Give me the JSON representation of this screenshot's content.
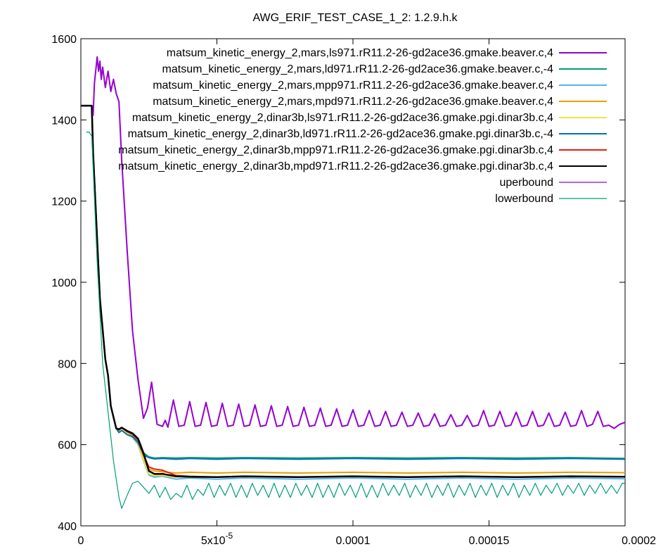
{
  "chart_data": {
    "type": "line",
    "title": "AWG_ERIF_TEST_CASE_1_2: 1.2.9.h.k",
    "xlabel": "",
    "ylabel": "",
    "xlim": [
      0,
      0.0002
    ],
    "ylim": [
      400,
      1600
    ],
    "x_ticks": [
      {
        "value": 0,
        "label": "0"
      },
      {
        "value": 5e-05,
        "label": "5x10",
        "sup": "-5"
      },
      {
        "value": 0.0001,
        "label": "0.0001"
      },
      {
        "value": 0.00015,
        "label": "0.00015"
      },
      {
        "value": 0.0002,
        "label": "0.0002"
      }
    ],
    "y_ticks": [
      {
        "value": 400,
        "label": "400"
      },
      {
        "value": 600,
        "label": "600"
      },
      {
        "value": 800,
        "label": "800"
      },
      {
        "value": 1000,
        "label": "1000"
      },
      {
        "value": 1200,
        "label": "1200"
      },
      {
        "value": 1400,
        "label": "1400"
      },
      {
        "value": 1600,
        "label": "1600"
      }
    ],
    "legend_position": "top-right",
    "series": [
      {
        "name": "matsum_kinetic_energy_2,mars,ls971.rR11.2-26-gd2ace36.gmake.beaver.c,4",
        "color": "#9400d3",
        "width": 2,
        "x": [
          4.5e-06,
          5e-06,
          6e-06,
          6.5e-06,
          7e-06,
          7.5e-06,
          8e-06,
          9e-06,
          1e-05,
          1.1e-05,
          1.2e-05,
          1.3e-05,
          1.4e-05,
          1.5e-05,
          1.7e-05,
          1.9e-05,
          2.1e-05,
          2.3e-05,
          2.45e-05,
          2.6e-05,
          2.8e-05,
          3e-05,
          3.1e-05,
          3.2e-05,
          3.4e-05,
          3.6e-05,
          3.8e-05,
          4e-05,
          4.2e-05,
          4.4e-05,
          4.6e-05,
          4.8e-05,
          5e-05,
          5.2e-05,
          5.4e-05,
          5.6e-05,
          5.8e-05,
          6e-05,
          6.2e-05,
          6.4e-05,
          6.6e-05,
          6.8e-05,
          7e-05,
          7.2e-05,
          7.4e-05,
          7.6e-05,
          7.8e-05,
          8e-05,
          8.2e-05,
          8.4e-05,
          8.6e-05,
          8.8e-05,
          9e-05,
          9.2e-05,
          9.4e-05,
          9.6e-05,
          9.8e-05,
          0.0001,
          0.000102,
          0.000104,
          0.000106,
          0.000108,
          0.00011,
          0.000112,
          0.000114,
          0.000116,
          0.000118,
          0.00012,
          0.000122,
          0.000124,
          0.000126,
          0.000128,
          0.00013,
          0.000132,
          0.000134,
          0.000136,
          0.000138,
          0.00014,
          0.000142,
          0.000144,
          0.000146,
          0.000148,
          0.00015,
          0.000152,
          0.000154,
          0.000156,
          0.000158,
          0.00016,
          0.000162,
          0.000164,
          0.000166,
          0.000168,
          0.00017,
          0.000172,
          0.000174,
          0.000176,
          0.000178,
          0.00018,
          0.000182,
          0.000184,
          0.000186,
          0.000188,
          0.00019,
          0.000192,
          0.000194,
          0.000196,
          0.000198,
          0.0002
        ],
        "y": [
          1410,
          1490,
          1555,
          1520,
          1545,
          1500,
          1530,
          1480,
          1520,
          1470,
          1500,
          1465,
          1445,
          1300,
          1080,
          880,
          760,
          665,
          690,
          754,
          650,
          645,
          660,
          643,
          710,
          645,
          648,
          706,
          645,
          648,
          704,
          645,
          648,
          702,
          645,
          648,
          700,
          645,
          648,
          698,
          645,
          648,
          696,
          645,
          648,
          694,
          645,
          648,
          692,
          645,
          648,
          690,
          645,
          648,
          688,
          645,
          648,
          686,
          645,
          648,
          684,
          645,
          648,
          682,
          645,
          648,
          680,
          645,
          648,
          678,
          645,
          648,
          676,
          645,
          648,
          674,
          645,
          648,
          672,
          645,
          648,
          684,
          645,
          648,
          682,
          645,
          648,
          680,
          645,
          648,
          682,
          645,
          648,
          678,
          645,
          648,
          680,
          645,
          648,
          684,
          645,
          650,
          682,
          645,
          648,
          640,
          650,
          655
        ]
      },
      {
        "name": "matsum_kinetic_energy_2,mars,ld971.rR11.2-26-gd2ace36.gmake.beaver.c,-4",
        "color": "#009e73",
        "width": 2,
        "x": [
          0,
          3e-06,
          4e-06,
          4.5e-06,
          7e-06,
          9e-06,
          1e-05,
          1.1e-05,
          1.3e-05,
          1.4e-05,
          1.5e-05,
          1.7e-05,
          1.9e-05,
          2.1e-05,
          2.3e-05,
          2.5e-05,
          2.7e-05,
          3e-05,
          3.5e-05,
          4e-05,
          5e-05,
          6e-05,
          8e-05,
          0.0001,
          0.00012,
          0.00014,
          0.00016,
          0.00018,
          0.0002
        ],
        "y": [
          1435,
          1435,
          1435,
          1320,
          960,
          810,
          770,
          695,
          640,
          635,
          640,
          630,
          625,
          610,
          580,
          570,
          567,
          568,
          567,
          568,
          567,
          568,
          567,
          568,
          567,
          568,
          567,
          568,
          566
        ]
      },
      {
        "name": "matsum_kinetic_energy_2,mars,mpp971.rR11.2-26-gd2ace36.gmake.beaver.c,4",
        "color": "#56b4e9",
        "width": 2,
        "x": [
          0,
          3e-06,
          4e-06,
          4.5e-06,
          7e-06,
          9e-06,
          1e-05,
          1.1e-05,
          1.3e-05,
          1.4e-05,
          1.5e-05,
          1.7e-05,
          1.9e-05,
          2.1e-05,
          2.3e-05,
          2.5e-05,
          2.7e-05,
          3e-05,
          3.5e-05,
          4e-05,
          5e-05,
          6e-05,
          8e-05,
          0.0001,
          0.00012,
          0.00014,
          0.00016,
          0.00018,
          0.0002
        ],
        "y": [
          1435,
          1435,
          1435,
          1320,
          960,
          810,
          770,
          695,
          640,
          632,
          635,
          625,
          618,
          600,
          560,
          525,
          520,
          522,
          515,
          518,
          515,
          518,
          515,
          518,
          515,
          518,
          515,
          518,
          516
        ]
      },
      {
        "name": "matsum_kinetic_energy_2,mars,mpd971.rR11.2-26-gd2ace36.gmake.beaver.c,4",
        "color": "#e69f00",
        "width": 2,
        "x": [
          0,
          3e-06,
          4e-06,
          4.5e-06,
          7e-06,
          9e-06,
          1e-05,
          1.1e-05,
          1.3e-05,
          1.4e-05,
          1.5e-05,
          1.7e-05,
          1.9e-05,
          2.1e-05,
          2.3e-05,
          2.5e-05,
          2.7e-05,
          3e-05,
          3.5e-05,
          4e-05,
          5e-05,
          6e-05,
          8e-05,
          0.0001,
          0.00012,
          0.00014,
          0.00016,
          0.00018,
          0.0002
        ],
        "y": [
          1435,
          1435,
          1435,
          1320,
          960,
          810,
          770,
          695,
          640,
          635,
          640,
          630,
          622,
          605,
          565,
          540,
          535,
          533,
          530,
          532,
          530,
          532,
          530,
          532,
          530,
          532,
          530,
          532,
          531
        ]
      },
      {
        "name": "matsum_kinetic_energy_2,dinar3b,ls971.rR11.2-26-gd2ace36.gmake.pgi.dinar3b.c,4",
        "color": "#f0e442",
        "width": 2,
        "x": [
          0,
          3e-06,
          4e-06,
          4.5e-06,
          7e-06,
          9e-06,
          1e-05,
          1.1e-05,
          1.3e-05,
          1.4e-05,
          1.5e-05,
          1.7e-05,
          1.9e-05,
          2.1e-05,
          2.3e-05,
          2.5e-05,
          2.7e-05,
          3e-05,
          3.5e-05,
          4e-05,
          5e-05,
          6e-05,
          8e-05,
          0.0001,
          0.00012,
          0.00014,
          0.00016,
          0.00018,
          0.0002
        ],
        "y": [
          1435,
          1435,
          1435,
          1320,
          960,
          810,
          770,
          695,
          640,
          634,
          638,
          628,
          620,
          602,
          562,
          528,
          524,
          524,
          520,
          522,
          520,
          522,
          520,
          522,
          520,
          522,
          520,
          522,
          521
        ]
      },
      {
        "name": "matsum_kinetic_energy_2,dinar3b,ld971.rR11.2-26-gd2ace36.gmake.pgi.dinar3b.c,-4",
        "color": "#0072b2",
        "width": 2,
        "x": [
          0,
          3e-06,
          4e-06,
          4.5e-06,
          7e-06,
          9e-06,
          1e-05,
          1.1e-05,
          1.3e-05,
          1.4e-05,
          1.5e-05,
          1.7e-05,
          1.9e-05,
          2.1e-05,
          2.3e-05,
          2.5e-05,
          2.7e-05,
          3e-05,
          3.5e-05,
          4e-05,
          5e-05,
          6e-05,
          8e-05,
          0.0001,
          0.00012,
          0.00014,
          0.00016,
          0.00018,
          0.0002
        ],
        "y": [
          1435,
          1435,
          1435,
          1320,
          960,
          810,
          770,
          695,
          640,
          630,
          635,
          625,
          620,
          605,
          575,
          568,
          565,
          566,
          564,
          566,
          564,
          566,
          564,
          566,
          564,
          566,
          564,
          566,
          564
        ]
      },
      {
        "name": "matsum_kinetic_energy_2,dinar3b,mpp971.rR11.2-26-gd2ace36.gmake.pgi.dinar3b.c,4",
        "color": "#e51e10",
        "width": 2,
        "x": [
          0,
          3e-06,
          4e-06,
          4.5e-06,
          7e-06,
          9e-06,
          1e-05,
          1.1e-05,
          1.3e-05,
          1.4e-05,
          1.5e-05,
          1.7e-05,
          1.9e-05,
          2.1e-05,
          2.3e-05,
          2.5e-05,
          2.7e-05,
          3e-05,
          3.5e-05,
          4e-05,
          5e-05,
          6e-05,
          8e-05,
          0.0001,
          0.00012,
          0.00014,
          0.00016,
          0.00018,
          0.0002
        ],
        "y": [
          1435,
          1435,
          1435,
          1320,
          960,
          810,
          770,
          695,
          640,
          636,
          642,
          632,
          626,
          612,
          575,
          545,
          540,
          537,
          524,
          522,
          520,
          522,
          520,
          522,
          520,
          522,
          520,
          522,
          521
        ]
      },
      {
        "name": "matsum_kinetic_energy_2,dinar3b,mpd971.rR11.2-26-gd2ace36.gmake.pgi.dinar3b.c,4",
        "color": "#000000",
        "width": 2.5,
        "x": [
          0,
          3e-06,
          4e-06,
          4.5e-06,
          7e-06,
          9e-06,
          1e-05,
          1.1e-05,
          1.3e-05,
          1.4e-05,
          1.5e-05,
          1.7e-05,
          1.9e-05,
          2.1e-05,
          2.3e-05,
          2.5e-05,
          2.7e-05,
          3e-05,
          3.5e-05,
          4e-05,
          5e-05,
          6e-05,
          8e-05,
          0.0001,
          0.00012,
          0.00014,
          0.00016,
          0.00018,
          0.0002
        ],
        "y": [
          1435,
          1435,
          1435,
          1320,
          960,
          810,
          770,
          695,
          640,
          638,
          642,
          634,
          628,
          615,
          580,
          535,
          528,
          528,
          522,
          521,
          520,
          522,
          520,
          522,
          520,
          522,
          520,
          522,
          521
        ]
      },
      {
        "name": "uperbound",
        "color": "#9400d3",
        "width": 1.2,
        "clone_of": 0
      },
      {
        "name": "lowerbound",
        "color": "#009e73",
        "width": 1.2,
        "x": [
          2e-06,
          3e-06,
          4e-06,
          6e-06,
          8e-06,
          1e-05,
          1.2e-05,
          1.4e-05,
          1.5e-05,
          1.7e-05,
          1.9e-05,
          2.1e-05,
          2.3e-05,
          2.5e-05,
          2.7e-05,
          2.9e-05,
          3.1e-05,
          3.3e-05,
          3.5e-05,
          3.7e-05,
          3.9e-05,
          4.1e-05,
          4.3e-05,
          4.5e-05,
          4.7e-05,
          4.9e-05,
          5.1e-05,
          5.3e-05,
          5.5e-05,
          5.7e-05,
          5.9e-05,
          6.1e-05,
          6.3e-05,
          6.5e-05,
          6.7e-05,
          6.9e-05,
          7.1e-05,
          7.3e-05,
          7.5e-05,
          7.7e-05,
          7.9e-05,
          8.1e-05,
          8.3e-05,
          8.5e-05,
          8.7e-05,
          8.9e-05,
          9.1e-05,
          9.3e-05,
          9.5e-05,
          9.7e-05,
          9.9e-05,
          0.000101,
          0.000103,
          0.000105,
          0.000107,
          0.000109,
          0.000111,
          0.000113,
          0.000115,
          0.000117,
          0.000119,
          0.000121,
          0.000123,
          0.000125,
          0.000127,
          0.000129,
          0.000131,
          0.000133,
          0.000135,
          0.000137,
          0.000139,
          0.000141,
          0.000143,
          0.000145,
          0.000147,
          0.000149,
          0.000151,
          0.000153,
          0.000155,
          0.000157,
          0.000159,
          0.000161,
          0.000163,
          0.000165,
          0.000167,
          0.000169,
          0.000171,
          0.000173,
          0.000175,
          0.000177,
          0.000179,
          0.000181,
          0.000183,
          0.000185,
          0.000187,
          0.000189,
          0.000191,
          0.000193,
          0.000195,
          0.000197,
          0.000199,
          0.0002
        ],
        "y": [
          1370,
          1370,
          1360,
          1050,
          800,
          680,
          560,
          470,
          443,
          475,
          505,
          510,
          495,
          480,
          500,
          470,
          495,
          465,
          480,
          470,
          500,
          465,
          490,
          475,
          505,
          470,
          500,
          475,
          505,
          470,
          500,
          470,
          505,
          475,
          500,
          470,
          505,
          470,
          500,
          470,
          505,
          475,
          500,
          470,
          505,
          470,
          500,
          470,
          505,
          475,
          500,
          470,
          505,
          470,
          500,
          470,
          505,
          475,
          500,
          475,
          505,
          470,
          500,
          475,
          505,
          470,
          500,
          475,
          505,
          470,
          500,
          475,
          505,
          470,
          500,
          475,
          505,
          470,
          500,
          475,
          505,
          470,
          500,
          475,
          505,
          475,
          500,
          480,
          505,
          475,
          500,
          480,
          505,
          475,
          500,
          480,
          505,
          480,
          500,
          480,
          505,
          505
        ]
      }
    ]
  }
}
